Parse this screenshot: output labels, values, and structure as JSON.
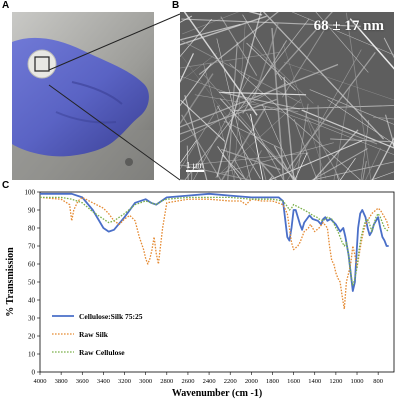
{
  "panels": {
    "a_label": "A",
    "b_label": "B",
    "c_label": "C"
  },
  "sem": {
    "fiber_diameter": "68 ± 17 nm",
    "scale_bar": "1 μm"
  },
  "colors": {
    "glove": "#5a63c4",
    "sample_disc": "#e8e8e4",
    "sem_background": "#6b6b6b",
    "cellulose_silk": "#4a6fc8",
    "raw_silk": "#e58a32",
    "raw_cellulose": "#7ab04a"
  },
  "chart_data": {
    "type": "line",
    "xlabel": "Wavenumber (cm -1)",
    "ylabel": "% Transmission",
    "xlim": [
      4000,
      650
    ],
    "ylim": [
      0,
      100
    ],
    "x_reversed": true,
    "xticks": [
      4000,
      3800,
      3600,
      3400,
      3200,
      3000,
      2800,
      2600,
      2400,
      2200,
      2000,
      1800,
      1600,
      1400,
      1200,
      1000,
      800
    ],
    "yticks": [
      0,
      10,
      20,
      30,
      40,
      50,
      60,
      70,
      80,
      90,
      100
    ],
    "grid": false,
    "legend_position": "bottom-left",
    "series": [
      {
        "name": "Cellulose:Silk 75:25",
        "style": "solid",
        "x": [
          4000,
          3800,
          3700,
          3600,
          3500,
          3450,
          3400,
          3350,
          3300,
          3200,
          3100,
          3000,
          2950,
          2900,
          2850,
          2800,
          2600,
          2400,
          2200,
          2000,
          1800,
          1740,
          1700,
          1660,
          1640,
          1620,
          1600,
          1580,
          1540,
          1520,
          1500,
          1450,
          1420,
          1370,
          1340,
          1320,
          1300,
          1280,
          1250,
          1200,
          1160,
          1130,
          1110,
          1080,
          1060,
          1040,
          1020,
          1000,
          990,
          970,
          950,
          920,
          900,
          880,
          860,
          840,
          820,
          800,
          780,
          760,
          740,
          720,
          700
        ],
        "y": [
          99,
          99,
          99,
          97,
          90,
          85,
          80,
          78,
          79,
          86,
          94,
          96,
          94,
          93,
          95,
          97,
          98,
          99,
          98,
          97,
          97,
          97,
          95,
          75,
          73,
          80,
          90,
          90,
          82,
          79,
          83,
          87,
          85,
          84,
          82,
          85,
          86,
          84,
          85,
          82,
          78,
          80,
          75,
          65,
          55,
          45,
          50,
          70,
          80,
          88,
          90,
          86,
          80,
          76,
          78,
          82,
          84,
          86,
          80,
          75,
          73,
          70,
          70
        ]
      },
      {
        "name": "Raw Silk",
        "style": "dotted",
        "x": [
          4000,
          3800,
          3720,
          3700,
          3680,
          3640,
          3600,
          3500,
          3400,
          3350,
          3300,
          3250,
          3200,
          3150,
          3100,
          3060,
          3020,
          3000,
          2980,
          2960,
          2940,
          2920,
          2900,
          2880,
          2860,
          2840,
          2800,
          2600,
          2400,
          2200,
          2100,
          2050,
          2000,
          1900,
          1800,
          1700,
          1660,
          1640,
          1620,
          1600,
          1560,
          1540,
          1520,
          1500,
          1460,
          1440,
          1400,
          1360,
          1320,
          1280,
          1260,
          1240,
          1220,
          1200,
          1180,
          1160,
          1140,
          1120,
          1100,
          1080,
          1060,
          1040,
          1020,
          1000,
          980,
          960,
          940,
          920,
          900,
          880,
          860,
          840,
          820,
          800,
          780,
          760,
          720,
          700
        ],
        "y": [
          97,
          96,
          93,
          84,
          90,
          95,
          97,
          94,
          91,
          88,
          84,
          82,
          85,
          87,
          84,
          75,
          68,
          63,
          60,
          63,
          68,
          75,
          66,
          60,
          70,
          80,
          94,
          96,
          96,
          95,
          95,
          93,
          96,
          95,
          95,
          93,
          88,
          80,
          72,
          68,
          70,
          72,
          75,
          78,
          80,
          82,
          78,
          80,
          83,
          80,
          70,
          62,
          60,
          55,
          52,
          50,
          42,
          35,
          50,
          55,
          60,
          70,
          65,
          58,
          65,
          72,
          78,
          82,
          84,
          86,
          88,
          89,
          90,
          91,
          90,
          88,
          84,
          80
        ]
      },
      {
        "name": "Raw Cellulose",
        "style": "dotted",
        "x": [
          4000,
          3800,
          3700,
          3600,
          3500,
          3400,
          3350,
          3300,
          3250,
          3200,
          3100,
          3000,
          2950,
          2900,
          2850,
          2800,
          2600,
          2400,
          2200,
          2000,
          1800,
          1700,
          1660,
          1640,
          1620,
          1600,
          1500,
          1440,
          1420,
          1380,
          1360,
          1320,
          1280,
          1240,
          1200,
          1180,
          1160,
          1140,
          1120,
          1100,
          1080,
          1060,
          1040,
          1020,
          1000,
          980,
          960,
          940,
          920,
          900,
          880,
          860,
          840,
          820,
          800,
          780,
          760,
          740,
          720,
          700
        ],
        "y": [
          97,
          97,
          96,
          94,
          89,
          85,
          83,
          84,
          86,
          88,
          93,
          95,
          94,
          93,
          95,
          96,
          97,
          97,
          97,
          96,
          96,
          95,
          92,
          90,
          91,
          93,
          90,
          88,
          87,
          86,
          85,
          84,
          86,
          85,
          80,
          78,
          75,
          72,
          70,
          72,
          65,
          55,
          48,
          52,
          58,
          68,
          75,
          80,
          84,
          85,
          82,
          78,
          82,
          86,
          88,
          86,
          83,
          80,
          79,
          78
        ]
      }
    ]
  }
}
